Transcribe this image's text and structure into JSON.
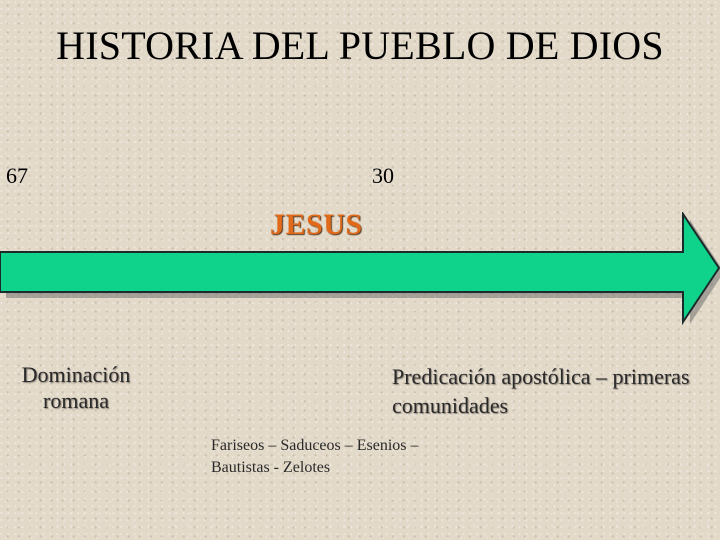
{
  "slide": {
    "title": "HISTORIA DEL PUEBLO DE DIOS",
    "timeline": {
      "start_year": "67",
      "end_year": "30",
      "center_label": "JESUS",
      "arrow_color": "#0fd38a",
      "center_label_color": "#e06a1a"
    },
    "left_caption": "Dominación romana",
    "right_caption": "Predicación apostólica – primeras comunidades",
    "groups_caption": "Fariseos – Saduceos – Esenios – Bautistas - Zelotes"
  }
}
